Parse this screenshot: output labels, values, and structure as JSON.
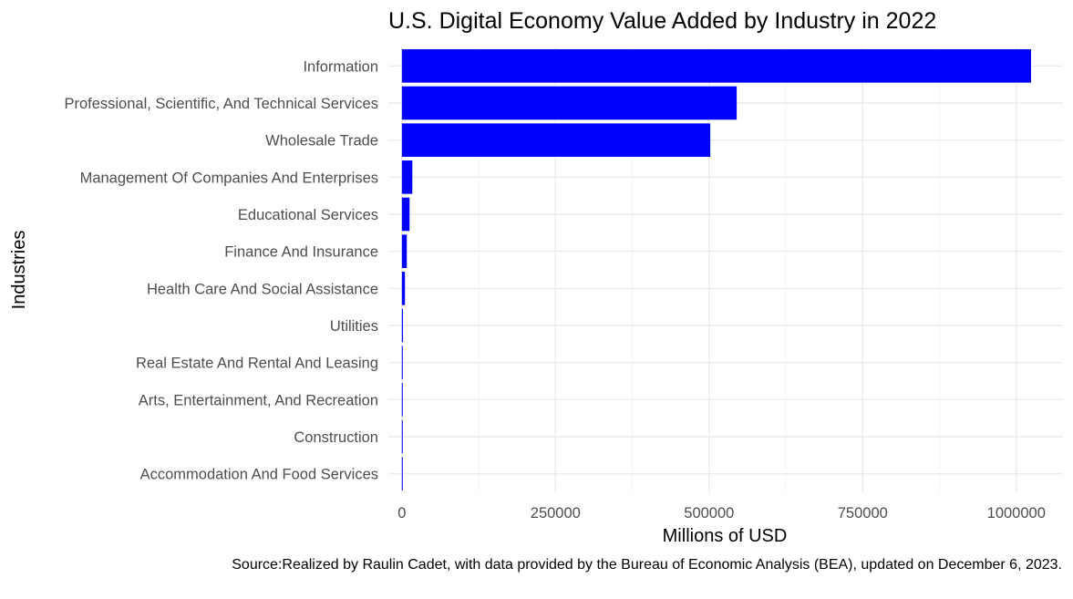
{
  "chart_data": {
    "type": "bar",
    "orientation": "horizontal",
    "title": "U.S. Digital Economy Value Added by Industry in 2022",
    "xlabel": "Millions of USD",
    "ylabel": "Industries",
    "caption": "Source:Realized by Raulin Cadet, with data provided by the Bureau of Economic Analysis (BEA), updated on December 6, 2023.",
    "categories": [
      "Information",
      "Professional, Scientific, And Technical Services",
      "Wholesale Trade",
      "Management Of Companies And Enterprises",
      "Educational Services",
      "Finance And Insurance",
      "Health Care And Social Assistance",
      "Utilities",
      "Real Estate And Rental And Leasing",
      "Arts, Entertainment, And Recreation",
      "Construction",
      "Accommodation And Food Services"
    ],
    "values": [
      1024000,
      545000,
      502000,
      17000,
      12500,
      8000,
      5000,
      1800,
      1500,
      1200,
      1000,
      700
    ],
    "xticks": [
      0,
      250000,
      500000,
      750000,
      1000000
    ],
    "xtick_labels": [
      "0",
      "250000",
      "500000",
      "750000",
      "1000000"
    ],
    "xlim": [
      -22000,
      1076000
    ],
    "bar_color": "#0000ff",
    "grid": true,
    "legend": "none"
  }
}
